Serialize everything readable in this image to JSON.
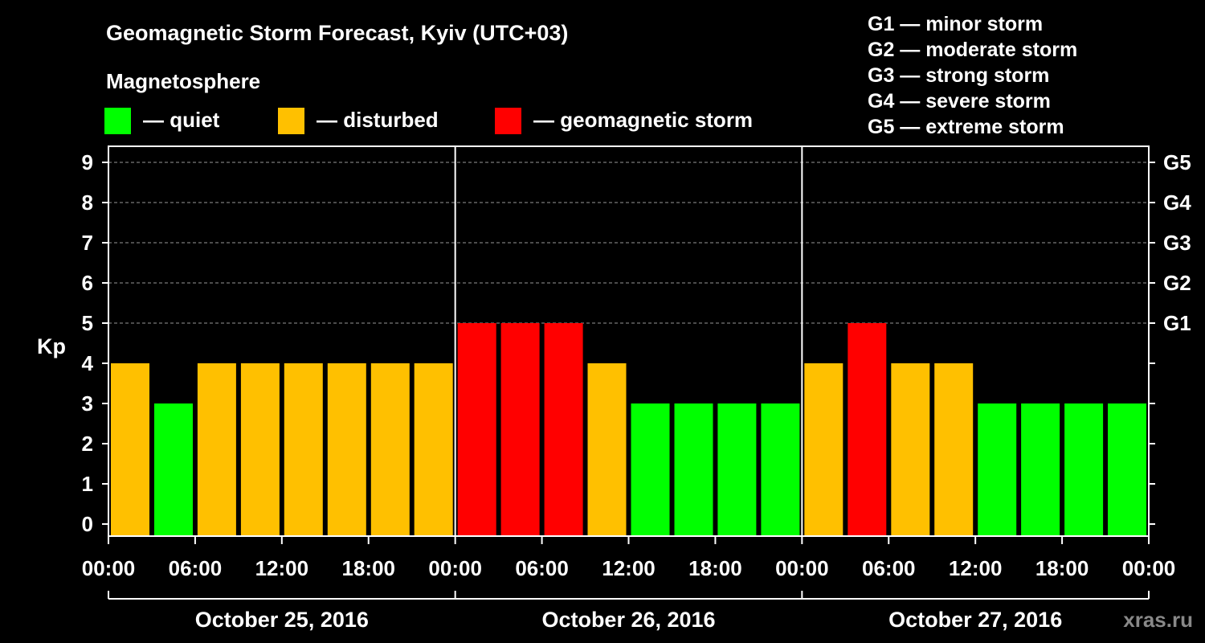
{
  "chart_data": {
    "type": "bar",
    "title": "Geomagnetic Storm Forecast, Kyiv (UTC+03)",
    "ylabel": "Kp",
    "ylim": [
      0,
      9
    ],
    "yticks": [
      "0",
      "1",
      "2",
      "3",
      "4",
      "5",
      "6",
      "7",
      "8",
      "9"
    ],
    "right_ticks": [
      {
        "kp": 5,
        "label": "G1"
      },
      {
        "kp": 6,
        "label": "G2"
      },
      {
        "kp": 7,
        "label": "G3"
      },
      {
        "kp": 8,
        "label": "G4"
      },
      {
        "kp": 9,
        "label": "G5"
      }
    ],
    "x_tick_labels": [
      "00:00",
      "06:00",
      "12:00",
      "18:00",
      "00:00",
      "06:00",
      "12:00",
      "18:00",
      "00:00",
      "06:00",
      "12:00",
      "18:00",
      "00:00"
    ],
    "days": [
      "October 25, 2016",
      "October 26, 2016",
      "October 27, 2016"
    ],
    "values": [
      4,
      3,
      4,
      4,
      4,
      4,
      4,
      4,
      5,
      5,
      5,
      4,
      3,
      3,
      3,
      3,
      4,
      5,
      4,
      4,
      3,
      3,
      3,
      3
    ],
    "bins_per_day": 8,
    "hours_per_bin": 3,
    "grid": "dashed horizontal lines at Kp 5-9",
    "legend": {
      "title": "Magnetosphere",
      "items": [
        {
          "label": "— quiet",
          "color": "#00ff00",
          "kp_max": 3
        },
        {
          "label": "— disturbed",
          "color": "#ffc000",
          "kp_max": 4
        },
        {
          "label": "— geomagnetic storm",
          "color": "#ff0000",
          "kp_max": 9
        }
      ]
    },
    "storm_scale": [
      "G1 — minor storm",
      "G2 — moderate storm",
      "G3 — strong storm",
      "G4 — severe storm",
      "G5 — extreme storm"
    ],
    "watermark": "xras.ru"
  },
  "colors": {
    "background": "#000000",
    "axis": "#ffffff",
    "grid": "#999999",
    "quiet": "#00ff00",
    "disturbed": "#ffc000",
    "storm": "#ff0000"
  }
}
